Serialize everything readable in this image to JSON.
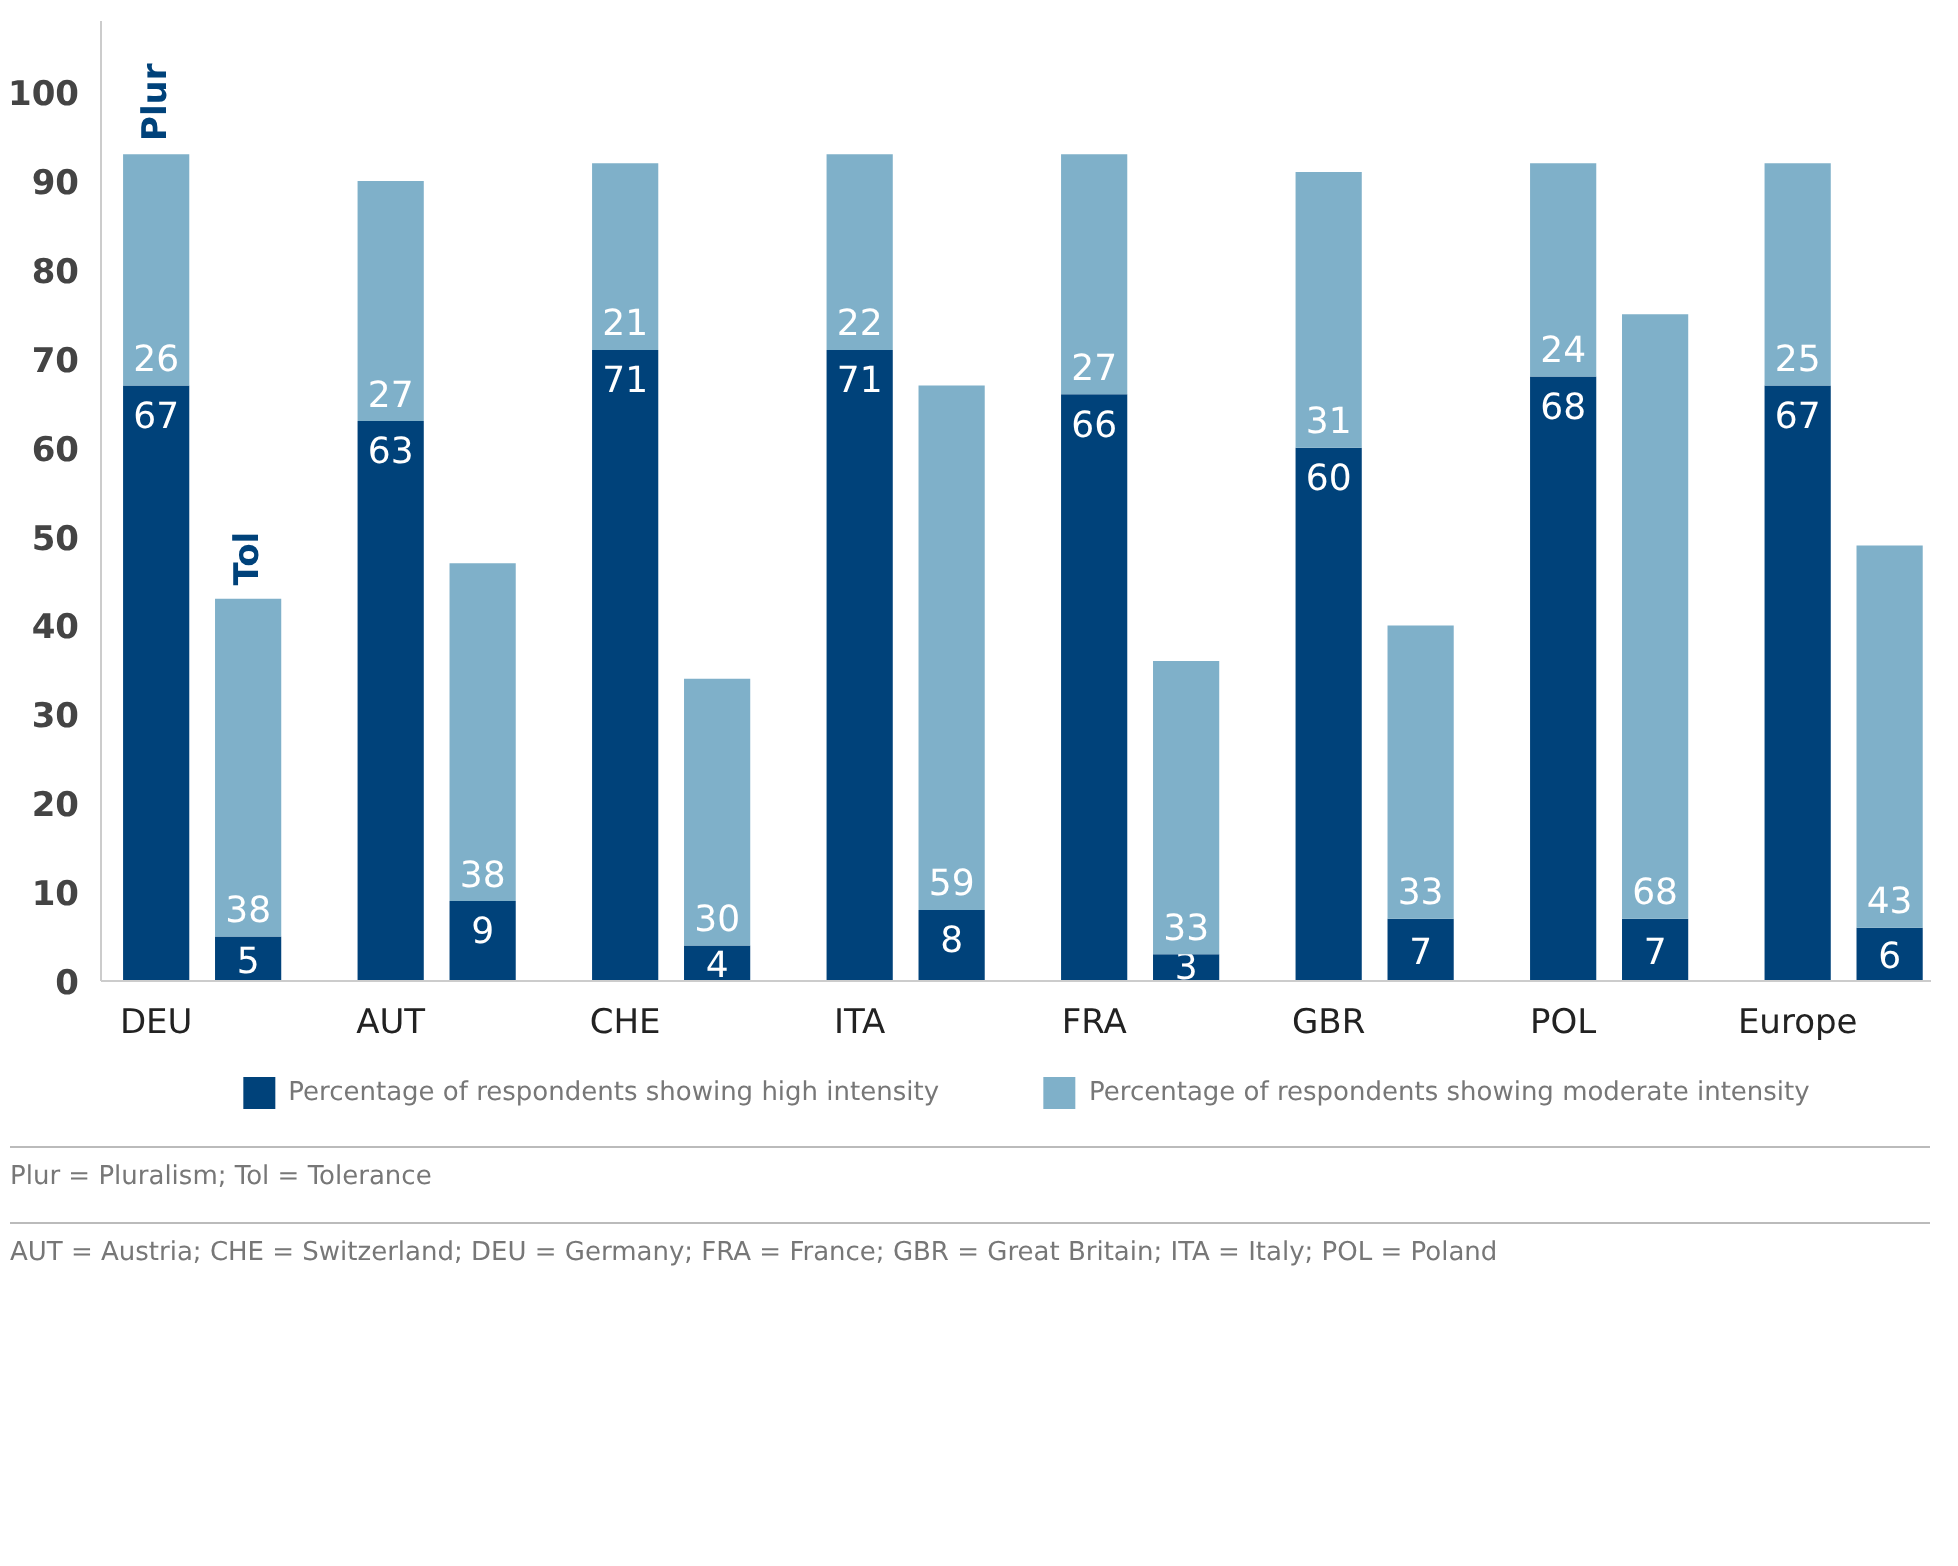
{
  "chart_data": {
    "type": "bar",
    "stacked": true,
    "data_labels": true,
    "legend": "bottom",
    "grid": false,
    "categories": [
      "DEU",
      null,
      "AUT",
      null,
      "CHE",
      null,
      "ITA",
      null,
      "FRA",
      null,
      "GBR",
      null,
      "POL",
      null,
      "Europe",
      null
    ],
    "series": [
      {
        "name": "Percentage of respondents showing high intensity",
        "color": "#00427a",
        "values": [
          67,
          5,
          63,
          9,
          71,
          4,
          71,
          8,
          66,
          3,
          60,
          7,
          68,
          7,
          67,
          6
        ]
      },
      {
        "name": "Percentage of respondents showing moderate intensity",
        "color": "#7fb0c9",
        "values": [
          26,
          38,
          27,
          38,
          21,
          30,
          22,
          59,
          27,
          33,
          31,
          33,
          24,
          68,
          25,
          43
        ]
      }
    ],
    "ylim": [
      0,
      108
    ],
    "yticks": [
      0,
      10,
      20,
      30,
      40,
      50,
      60,
      70,
      80,
      90,
      100
    ],
    "annotations": [
      "Plur",
      "Tol",
      "Plur = Pluralism; Tol = Tolerance",
      "AUT = Austria; CHE = Switzerland; DEU = Germany; FRA = France; GBR = Great Britain; ITA = Italy; POL = Poland"
    ]
  }
}
